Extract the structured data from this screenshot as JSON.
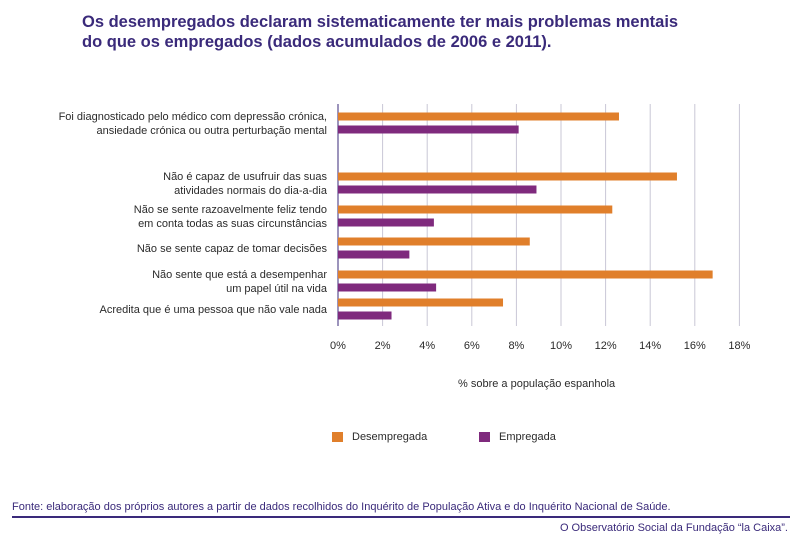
{
  "title_lines": [
    "Os desempregados declaram sistematicamente ter mais problemas mentais",
    "do que os empregados (dados acumulados de 2006 e 2011)."
  ],
  "chart_data": {
    "type": "bar",
    "orientation": "horizontal",
    "categories": [
      [
        "Foi diagnosticado pelo médico com depressão crónica,",
        "ansiedade crónica ou outra perturbação mental"
      ],
      [
        "Não é capaz de usufruir das suas",
        "atividades normais do dia-a-dia"
      ],
      [
        "Não se sente razoavelmente feliz tendo",
        "em conta todas as suas circunstâncias"
      ],
      [
        "Não se sente capaz de tomar decisões"
      ],
      [
        "Não sente que está a desempenhar",
        "um papel útil na vida"
      ],
      [
        "Acredita que é uma pessoa que não vale nada"
      ]
    ],
    "series": [
      {
        "name": "Desempregada",
        "color": "#e07f2b",
        "values": [
          12.6,
          15.2,
          12.3,
          8.6,
          16.8,
          7.4
        ]
      },
      {
        "name": "Empregada",
        "color": "#7f2a7d",
        "values": [
          8.1,
          8.9,
          4.3,
          3.2,
          4.4,
          2.4
        ]
      }
    ],
    "xlim": [
      0,
      18
    ],
    "xticks": [
      "0%",
      "2%",
      "4%",
      "6%",
      "8%",
      "10%",
      "12%",
      "14%",
      "16%",
      "18%"
    ],
    "xlabel": "% sobre a população espanhola",
    "grid": true,
    "legend_position": "bottom"
  },
  "source": "Fonte: elaboração dos próprios autores a partir de dados recolhidos do Inquérito de População Ativa e do Inquérito Nacional de Saúde.",
  "credit": "O Observatório Social da Fundação “la Caixa”."
}
